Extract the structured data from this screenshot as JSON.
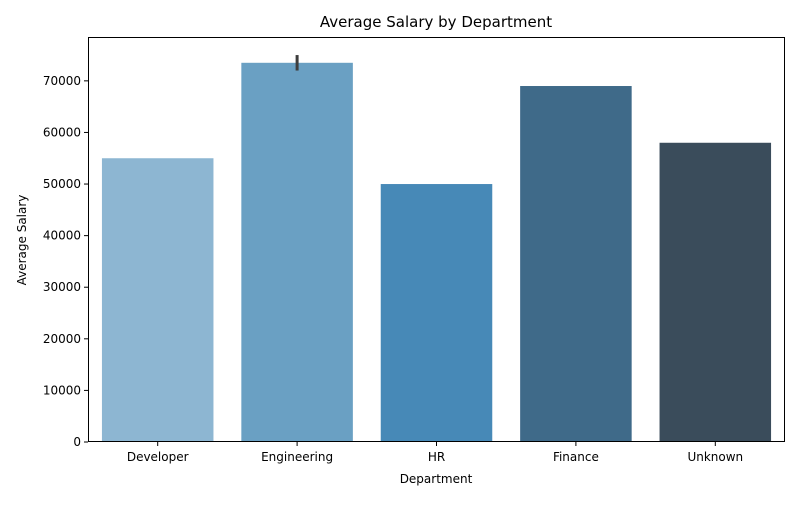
{
  "chart_data": {
    "type": "bar",
    "title": "Average Salary by Department",
    "xlabel": "Department",
    "ylabel": "Average Salary",
    "categories": [
      "Developer",
      "Engineering",
      "HR",
      "Finance",
      "Unknown"
    ],
    "values": [
      55000,
      73500,
      50000,
      69000,
      58000
    ],
    "error_bars": [
      null,
      [
        72000,
        75000
      ],
      null,
      null,
      null
    ],
    "colors": [
      "#8db6d2",
      "#6aa0c3",
      "#4789b7",
      "#3f6a89",
      "#3a4c5b"
    ],
    "yticks": [
      0,
      10000,
      20000,
      30000,
      40000,
      50000,
      60000,
      70000
    ],
    "ylim": [
      0,
      78500
    ],
    "grid": false,
    "legend": "none"
  }
}
